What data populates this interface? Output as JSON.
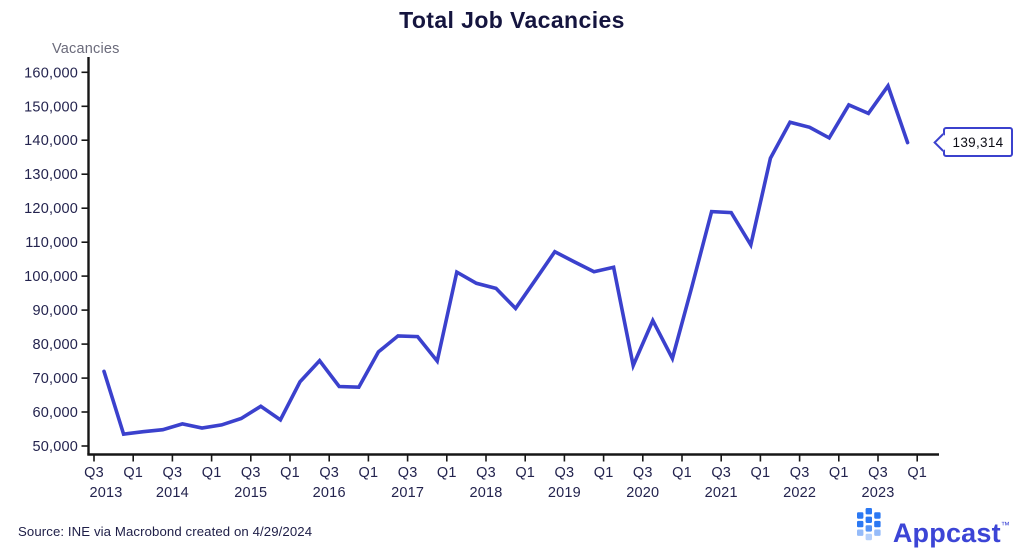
{
  "title": "Total Job Vacancies",
  "y_axis": {
    "label": "Vacancies",
    "tick_labels": [
      "160,000",
      "150,000",
      "140,000",
      "130,000",
      "120,000",
      "110,000",
      "100,000",
      "90,000",
      "80,000",
      "70,000",
      "60,000",
      "50,000"
    ],
    "tick_values": [
      160000,
      150000,
      140000,
      130000,
      120000,
      110000,
      100000,
      90000,
      80000,
      70000,
      60000,
      50000
    ]
  },
  "x_axis": {
    "ticks": [
      {
        "q": "Q3",
        "year": "2013",
        "year_dx": 12
      },
      {
        "q": "Q1"
      },
      {
        "q": "Q3",
        "year": "2014"
      },
      {
        "q": "Q1"
      },
      {
        "q": "Q3",
        "year": "2015"
      },
      {
        "q": "Q1"
      },
      {
        "q": "Q3",
        "year": "2016"
      },
      {
        "q": "Q1"
      },
      {
        "q": "Q3",
        "year": "2017"
      },
      {
        "q": "Q1"
      },
      {
        "q": "Q3",
        "year": "2018"
      },
      {
        "q": "Q1"
      },
      {
        "q": "Q3",
        "year": "2019"
      },
      {
        "q": "Q1"
      },
      {
        "q": "Q3",
        "year": "2020"
      },
      {
        "q": "Q1"
      },
      {
        "q": "Q3",
        "year": "2021"
      },
      {
        "q": "Q1"
      },
      {
        "q": "Q3",
        "year": "2022"
      },
      {
        "q": "Q1"
      },
      {
        "q": "Q3",
        "year": "2023"
      },
      {
        "q": "Q1"
      }
    ]
  },
  "callout": {
    "value": "139,314"
  },
  "source": "Source: INE via Macrobond created on 4/29/2024",
  "logo": {
    "text": "Appcast",
    "tm": "™"
  },
  "colors": {
    "line": "#3b41cd",
    "title": "#15153f",
    "axis_text": "#23234e",
    "muted_text": "#6b6b7b",
    "axis": "#161616",
    "callout_border": "#3b41cd",
    "logo_icon": "#2b78f3",
    "logo_text": "#3c45d6"
  },
  "chart_data": {
    "type": "line",
    "title": "Total Job Vacancies",
    "ylabel": "Vacancies",
    "series_name": "Total job vacancies (Spain, INE)",
    "x": [
      "2013 Q3",
      "2013 Q4",
      "2014 Q1",
      "2014 Q2",
      "2014 Q3",
      "2014 Q4",
      "2015 Q1",
      "2015 Q2",
      "2015 Q3",
      "2015 Q4",
      "2016 Q1",
      "2016 Q2",
      "2016 Q3",
      "2016 Q4",
      "2017 Q1",
      "2017 Q2",
      "2017 Q3",
      "2017 Q4",
      "2018 Q1",
      "2018 Q2",
      "2018 Q3",
      "2018 Q4",
      "2019 Q1",
      "2019 Q2",
      "2019 Q3",
      "2019 Q4",
      "2020 Q1",
      "2020 Q2",
      "2020 Q3",
      "2020 Q4",
      "2021 Q1",
      "2021 Q2",
      "2021 Q3",
      "2021 Q4",
      "2022 Q1",
      "2022 Q2",
      "2022 Q3",
      "2022 Q4",
      "2023 Q1",
      "2023 Q2",
      "2023 Q3",
      "2023 Q4"
    ],
    "values": [
      72000,
      53500,
      54200,
      54800,
      56500,
      55300,
      56200,
      58100,
      61700,
      57700,
      68900,
      75100,
      67500,
      67300,
      77700,
      82400,
      82200,
      75000,
      101200,
      97900,
      96400,
      90500,
      98800,
      107200,
      104200,
      101300,
      102600,
      73700,
      86900,
      75800,
      97000,
      119000,
      118700,
      109200,
      134700,
      145300,
      143800,
      140700,
      150400,
      147900,
      156000,
      139314
    ],
    "ylim": [
      50000,
      160000
    ],
    "x_axis_extends_to": "2024 Q1",
    "last_value_label": "139,314",
    "grid": false,
    "legend_position": "none"
  }
}
